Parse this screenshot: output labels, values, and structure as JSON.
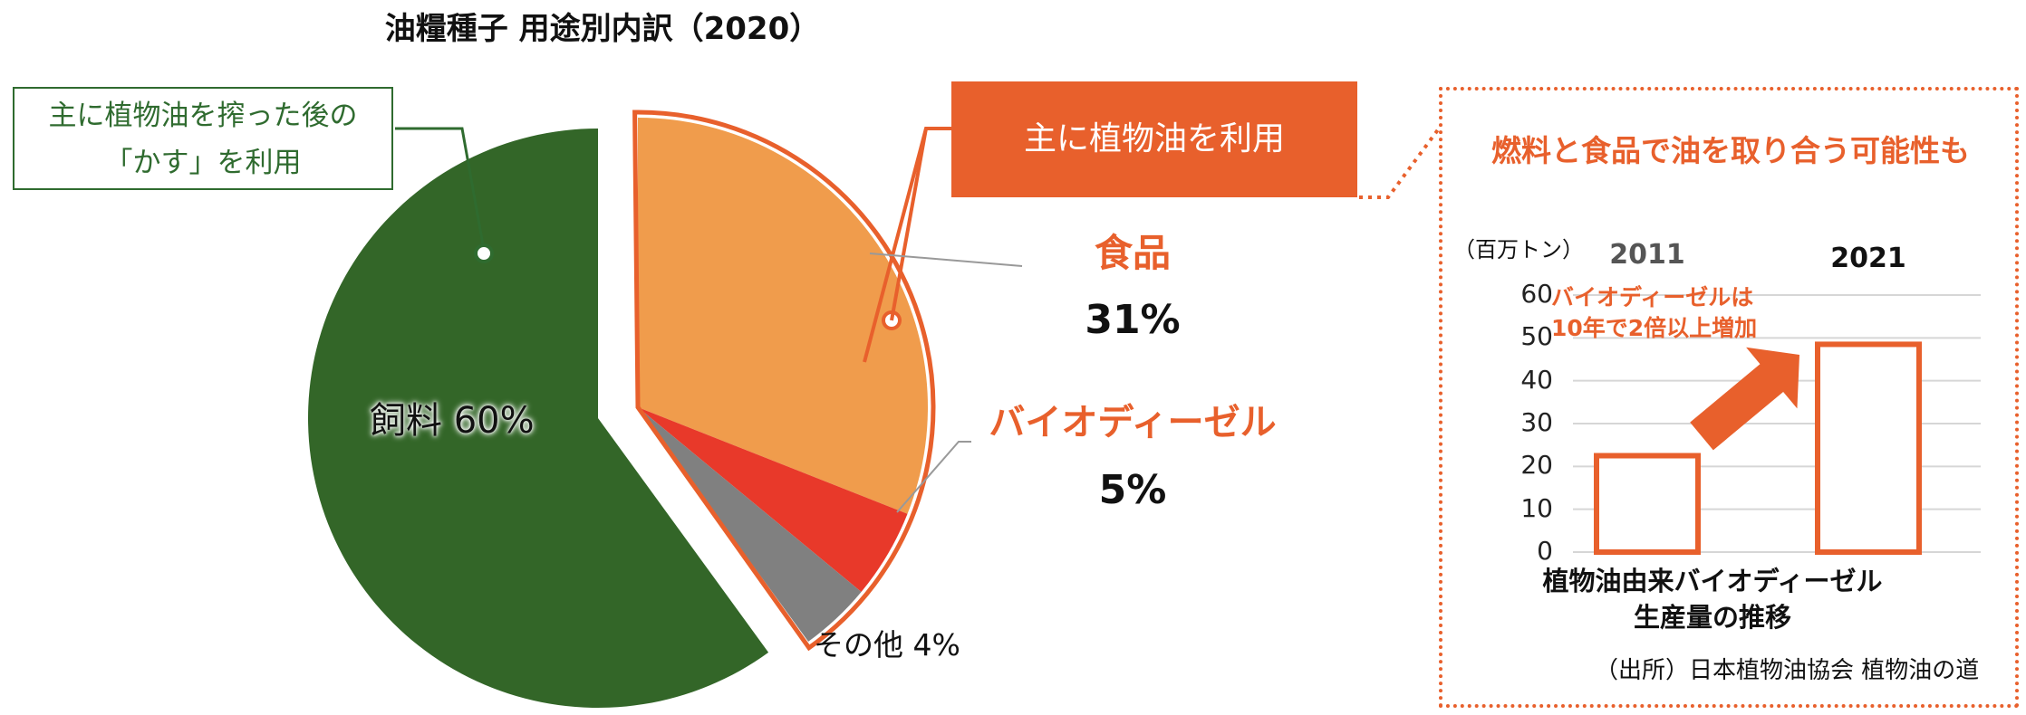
{
  "title": "油糧種子 用途別内訳（2020）",
  "callouts": {
    "feed_use": "主に植物油を搾った後の",
    "feed_use_line2": "「かす」を利用",
    "oil_use": "主に植物油を利用"
  },
  "labels": {
    "food": "食品",
    "food_pct": "31%",
    "biodiesel": "バイオディーゼル",
    "biodiesel_pct": "5%",
    "feed": "飼料 60%",
    "other": "その他 4%"
  },
  "inset": {
    "heading": "燃料と食品で油を取り合う可能性も",
    "unit": "（百万トン）",
    "annotation_line1": "バイオディーゼルは",
    "annotation_line2": "10年で2倍以上増加",
    "caption_line1": "植物油由来バイオディーゼル",
    "caption_line2": "生産量の推移",
    "source": "（出所）日本植物油協会 植物油の道"
  },
  "colors": {
    "feed": "#336628",
    "food": "#f09c4c",
    "biodiesel": "#e8392a",
    "other": "#808080",
    "accent": "#e8602c",
    "green_outline": "#2f6b2f"
  },
  "chart_data": [
    {
      "type": "pie",
      "title": "油糧種子 用途別内訳（2020）",
      "categories": [
        "食品",
        "バイオディーゼル",
        "その他",
        "飼料"
      ],
      "values": [
        31,
        5,
        4,
        60
      ]
    },
    {
      "type": "bar",
      "categories": [
        "2011",
        "2021"
      ],
      "values": [
        22.5,
        48.5
      ],
      "ylabel": "（百万トン）",
      "ylim": [
        0,
        60
      ],
      "yticks": [
        0,
        10,
        20,
        30,
        40,
        50,
        60
      ],
      "grid": true
    }
  ]
}
